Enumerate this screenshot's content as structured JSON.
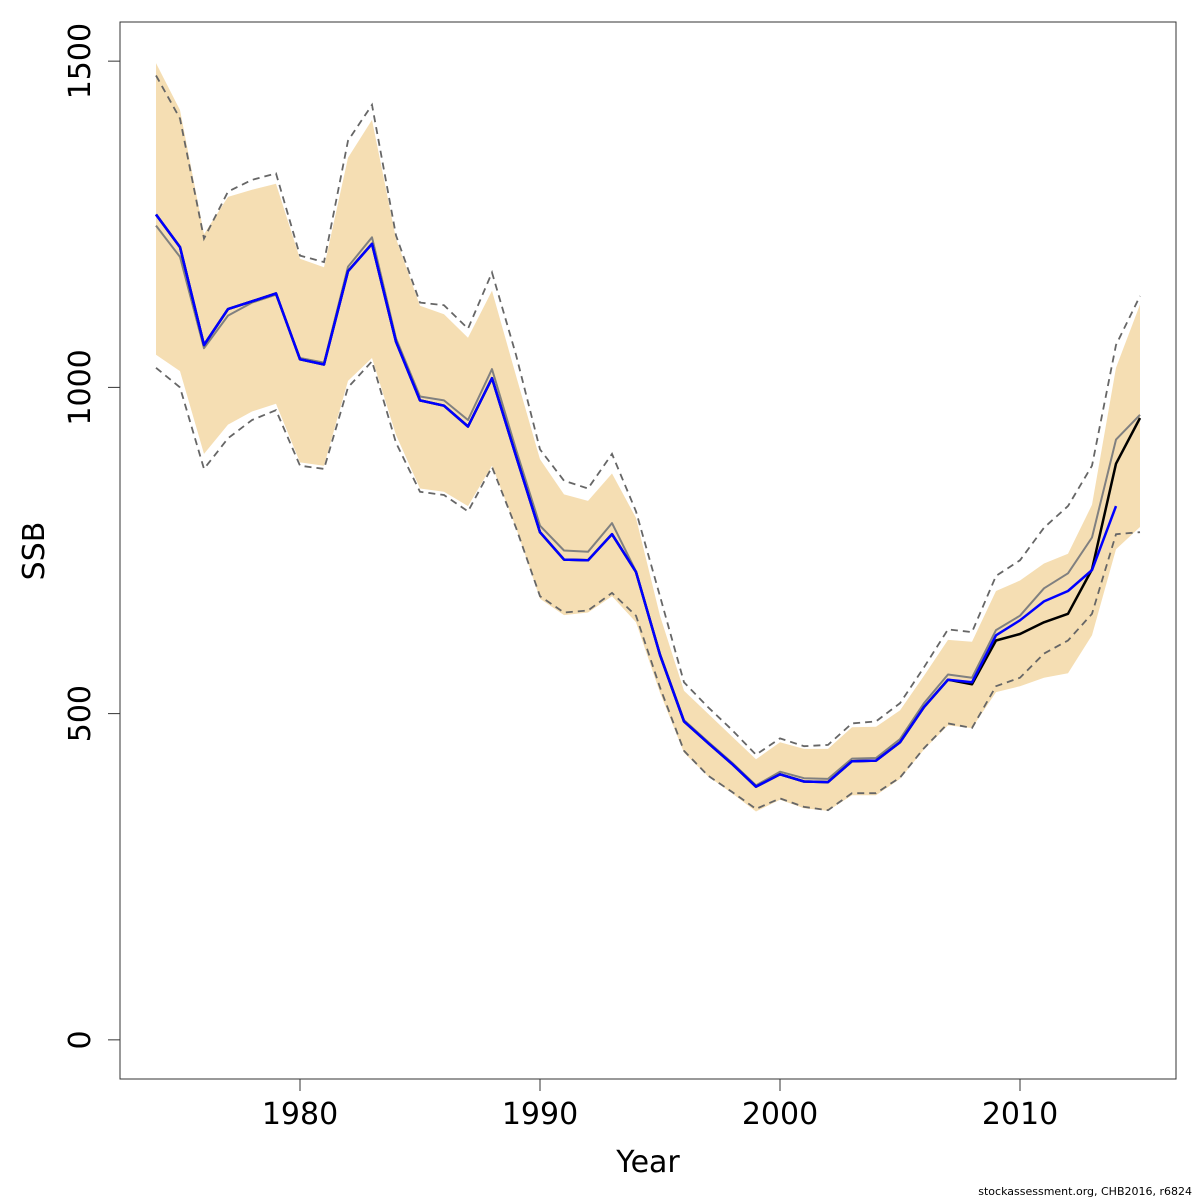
{
  "chart_data": {
    "type": "line",
    "xlabel": "Year",
    "ylabel": "SSB",
    "xlim": [
      1972.5,
      2016.5
    ],
    "ylim": [
      -60,
      1560
    ],
    "x_ticks": [
      1980,
      1990,
      2000,
      2010
    ],
    "y_ticks": [
      0,
      500,
      1000,
      1500
    ],
    "footnote": "stockassessment.org, CHB2016, r6824",
    "colors": {
      "band": "#f5deb3",
      "current": "#000000",
      "previous": "#0000ff",
      "alternative": "#808080",
      "bounds": "#666666"
    },
    "years": [
      1974,
      1975,
      1976,
      1977,
      1978,
      1979,
      1980,
      1981,
      1982,
      1983,
      1984,
      1985,
      1986,
      1987,
      1988,
      1989,
      1990,
      1991,
      1992,
      1993,
      1994,
      1995,
      1996,
      1997,
      1998,
      1999,
      2000,
      2001,
      2002,
      2003,
      2004,
      2005,
      2006,
      2007,
      2008,
      2009,
      2010,
      2011,
      2012,
      2013,
      2014,
      2015
    ],
    "series": [
      {
        "key": "current",
        "values": [
          1265,
          1215,
          1065,
          1120,
          1132,
          1144,
          1043,
          1035,
          1178,
          1220,
          1070,
          980,
          972,
          940,
          1014,
          895,
          778,
          736,
          735,
          775,
          717,
          590,
          488,
          455,
          423,
          388,
          407,
          396,
          395,
          427,
          428,
          456,
          510,
          552,
          545,
          612,
          622,
          640,
          653,
          721,
          883,
          953
        ]
      },
      {
        "key": "previous",
        "values": [
          1265,
          1215,
          1065,
          1120,
          1132,
          1144,
          1043,
          1035,
          1178,
          1220,
          1070,
          980,
          972,
          940,
          1014,
          895,
          778,
          736,
          735,
          775,
          717,
          590,
          488,
          455,
          423,
          388,
          407,
          396,
          395,
          427,
          428,
          456,
          510,
          552,
          548,
          620,
          643,
          672,
          688,
          720,
          818
        ]
      },
      {
        "key": "alternative",
        "values": [
          1248,
          1200,
          1060,
          1110,
          1130,
          1142,
          1045,
          1038,
          1185,
          1230,
          1075,
          986,
          980,
          950,
          1028,
          905,
          788,
          750,
          748,
          792,
          718,
          592,
          490,
          457,
          425,
          390,
          411,
          401,
          400,
          431,
          432,
          461,
          516,
          560,
          555,
          628,
          650,
          692,
          715,
          770,
          920,
          958
        ]
      }
    ],
    "band_lower": [
      1050,
      1025,
      898,
      943,
      963,
      975,
      885,
      880,
      1010,
      1045,
      927,
      845,
      840,
      818,
      880,
      785,
      676,
      651,
      655,
      680,
      640,
      532,
      440,
      404,
      378,
      350,
      368,
      355,
      351,
      375,
      375,
      400,
      445,
      482,
      478,
      533,
      542,
      555,
      562,
      620,
      752,
      786
    ],
    "band_upper": [
      1497,
      1425,
      1235,
      1292,
      1303,
      1312,
      1197,
      1184,
      1352,
      1410,
      1228,
      1125,
      1112,
      1076,
      1148,
      1018,
      890,
      836,
      826,
      868,
      800,
      650,
      535,
      500,
      465,
      430,
      456,
      446,
      446,
      479,
      480,
      505,
      558,
      613,
      610,
      688,
      704,
      730,
      745,
      820,
      1030,
      1127
    ],
    "dashed_lower": [
      1030,
      1000,
      875,
      922,
      950,
      965,
      880,
      875,
      1000,
      1040,
      915,
      840,
      835,
      810,
      878,
      785,
      680,
      655,
      658,
      685,
      650,
      540,
      443,
      405,
      380,
      354,
      370,
      357,
      352,
      378,
      378,
      402,
      447,
      485,
      478,
      542,
      555,
      592,
      612,
      653,
      775,
      778
    ],
    "dashed_upper": [
      1478,
      1412,
      1228,
      1300,
      1318,
      1328,
      1202,
      1192,
      1378,
      1433,
      1233,
      1130,
      1126,
      1090,
      1176,
      1050,
      905,
      857,
      845,
      898,
      810,
      680,
      548,
      510,
      475,
      437,
      462,
      450,
      452,
      485,
      488,
      516,
      571,
      629,
      625,
      711,
      735,
      785,
      818,
      880,
      1065,
      1140
    ]
  }
}
